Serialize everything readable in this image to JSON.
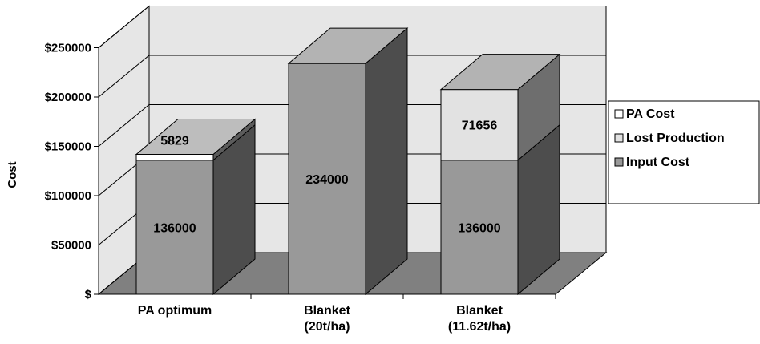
{
  "chart_data": {
    "type": "bar",
    "stacked": true,
    "three_d": true,
    "ylabel": "Cost",
    "xlabel": "",
    "title": "",
    "ylim": [
      0,
      250000
    ],
    "yticks": [
      0,
      50000,
      100000,
      150000,
      200000,
      250000
    ],
    "ytick_labels": [
      "$",
      "$50000",
      "$100000",
      "$150000",
      "$200000",
      "$250000"
    ],
    "categories": [
      [
        "PA optimum"
      ],
      [
        "Blanket",
        "(20t/ha)"
      ],
      [
        "Blanket",
        "(11.62t/ha)"
      ]
    ],
    "series": [
      {
        "name": "Input Cost",
        "values": [
          136000,
          234000,
          136000
        ],
        "color": "#999999"
      },
      {
        "name": "Lost Production",
        "values": [
          0,
          0,
          71656
        ],
        "color": "#e2e2e2"
      },
      {
        "name": "PA Cost",
        "values": [
          5829,
          0,
          0
        ],
        "color": "#ffffff"
      }
    ],
    "data_labels": [
      {
        "category": 0,
        "series": "Input Cost",
        "text": "136000"
      },
      {
        "category": 0,
        "series": "PA Cost",
        "text": "5829"
      },
      {
        "category": 1,
        "series": "Input Cost",
        "text": "234000"
      },
      {
        "category": 2,
        "series": "Input Cost",
        "text": "136000"
      },
      {
        "category": 2,
        "series": "Lost Production",
        "text": "71656"
      }
    ],
    "legend": {
      "placement": "right",
      "entries": [
        "PA Cost",
        "Lost Production",
        "Input Cost"
      ]
    },
    "grid": true,
    "colors": {
      "back_wall": "#e6e6e6",
      "floor": "#808080",
      "side_dark": "#4d4d4d",
      "top_tint": "#b3b3b3"
    }
  }
}
